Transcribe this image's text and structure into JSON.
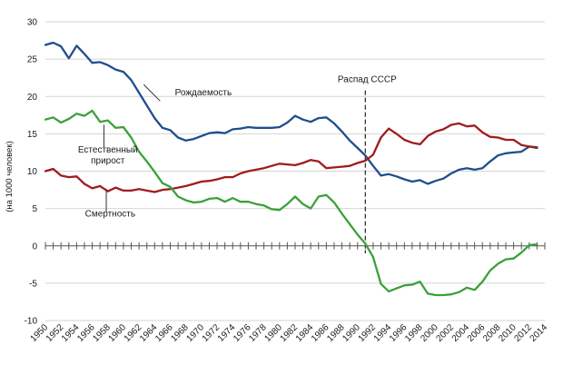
{
  "chart_data": {
    "type": "line",
    "title": "",
    "xlabel": "",
    "ylabel": "(на 1000 человек)",
    "xlim": [
      1950,
      2014
    ],
    "ylim": [
      -10,
      30
    ],
    "grid": true,
    "x_ticks": [
      "1950",
      "1952",
      "1954",
      "1956",
      "1958",
      "1960",
      "1962",
      "1964",
      "1966",
      "1968",
      "1970",
      "1972",
      "1974",
      "1976",
      "1978",
      "1980",
      "1982",
      "1984",
      "1986",
      "1988",
      "1990",
      "1992",
      "1994",
      "1996",
      "1998",
      "2000",
      "2002",
      "2004",
      "2006",
      "2008",
      "2010",
      "2012",
      "2014"
    ],
    "y_ticks": [
      "30",
      "25",
      "20",
      "15",
      "10",
      "5",
      "0",
      "-5",
      "-10"
    ],
    "event": {
      "year": 1991,
      "label": "Распад СССР"
    },
    "series": [
      {
        "name": "Рождаемость",
        "color": "#1f4e8c",
        "points": [
          [
            1950,
            26.9
          ],
          [
            1951,
            27.2
          ],
          [
            1952,
            26.7
          ],
          [
            1953,
            25.1
          ],
          [
            1954,
            26.8
          ],
          [
            1955,
            25.7
          ],
          [
            1956,
            24.5
          ],
          [
            1957,
            24.6
          ],
          [
            1958,
            24.2
          ],
          [
            1959,
            23.6
          ],
          [
            1960,
            23.3
          ],
          [
            1961,
            22.2
          ],
          [
            1962,
            20.5
          ],
          [
            1963,
            18.8
          ],
          [
            1964,
            17.1
          ],
          [
            1965,
            15.8
          ],
          [
            1966,
            15.5
          ],
          [
            1967,
            14.5
          ],
          [
            1968,
            14.1
          ],
          [
            1969,
            14.3
          ],
          [
            1970,
            14.7
          ],
          [
            1971,
            15.1
          ],
          [
            1972,
            15.2
          ],
          [
            1973,
            15.1
          ],
          [
            1974,
            15.6
          ],
          [
            1975,
            15.7
          ],
          [
            1976,
            15.9
          ],
          [
            1977,
            15.8
          ],
          [
            1978,
            15.8
          ],
          [
            1979,
            15.8
          ],
          [
            1980,
            15.9
          ],
          [
            1981,
            16.5
          ],
          [
            1982,
            17.4
          ],
          [
            1983,
            16.9
          ],
          [
            1984,
            16.6
          ],
          [
            1985,
            17.1
          ],
          [
            1986,
            17.2
          ],
          [
            1987,
            16.4
          ],
          [
            1988,
            15.3
          ],
          [
            1989,
            14.1
          ],
          [
            1990,
            13.1
          ],
          [
            1991,
            12.1
          ],
          [
            1992,
            10.7
          ],
          [
            1993,
            9.4
          ],
          [
            1994,
            9.6
          ],
          [
            1995,
            9.3
          ],
          [
            1996,
            8.9
          ],
          [
            1997,
            8.6
          ],
          [
            1998,
            8.8
          ],
          [
            1999,
            8.3
          ],
          [
            2000,
            8.7
          ],
          [
            2001,
            9.0
          ],
          [
            2002,
            9.7
          ],
          [
            2003,
            10.2
          ],
          [
            2004,
            10.4
          ],
          [
            2005,
            10.2
          ],
          [
            2006,
            10.4
          ],
          [
            2007,
            11.3
          ],
          [
            2008,
            12.1
          ],
          [
            2009,
            12.4
          ],
          [
            2010,
            12.5
          ],
          [
            2011,
            12.6
          ],
          [
            2012,
            13.3
          ],
          [
            2013,
            13.2
          ]
        ]
      },
      {
        "name": "Смертность",
        "color": "#a01c1c",
        "points": [
          [
            1950,
            10.0
          ],
          [
            1951,
            10.3
          ],
          [
            1952,
            9.4
          ],
          [
            1953,
            9.2
          ],
          [
            1954,
            9.3
          ],
          [
            1955,
            8.3
          ],
          [
            1956,
            7.7
          ],
          [
            1957,
            8.0
          ],
          [
            1958,
            7.3
          ],
          [
            1959,
            7.8
          ],
          [
            1960,
            7.4
          ],
          [
            1961,
            7.4
          ],
          [
            1962,
            7.6
          ],
          [
            1963,
            7.4
          ],
          [
            1964,
            7.2
          ],
          [
            1965,
            7.5
          ],
          [
            1966,
            7.6
          ],
          [
            1967,
            7.8
          ],
          [
            1968,
            8.0
          ],
          [
            1969,
            8.3
          ],
          [
            1970,
            8.6
          ],
          [
            1971,
            8.7
          ],
          [
            1972,
            8.9
          ],
          [
            1973,
            9.2
          ],
          [
            1974,
            9.2
          ],
          [
            1975,
            9.7
          ],
          [
            1976,
            10.0
          ],
          [
            1977,
            10.2
          ],
          [
            1978,
            10.4
          ],
          [
            1979,
            10.7
          ],
          [
            1980,
            11.0
          ],
          [
            1981,
            10.9
          ],
          [
            1982,
            10.8
          ],
          [
            1983,
            11.1
          ],
          [
            1984,
            11.5
          ],
          [
            1985,
            11.3
          ],
          [
            1986,
            10.4
          ],
          [
            1987,
            10.5
          ],
          [
            1988,
            10.6
          ],
          [
            1989,
            10.7
          ],
          [
            1990,
            11.1
          ],
          [
            1991,
            11.4
          ],
          [
            1992,
            12.2
          ],
          [
            1993,
            14.5
          ],
          [
            1994,
            15.7
          ],
          [
            1995,
            15.0
          ],
          [
            1996,
            14.2
          ],
          [
            1997,
            13.8
          ],
          [
            1998,
            13.6
          ],
          [
            1999,
            14.7
          ],
          [
            2000,
            15.3
          ],
          [
            2001,
            15.6
          ],
          [
            2002,
            16.2
          ],
          [
            2003,
            16.4
          ],
          [
            2004,
            16.0
          ],
          [
            2005,
            16.1
          ],
          [
            2006,
            15.2
          ],
          [
            2007,
            14.6
          ],
          [
            2008,
            14.5
          ],
          [
            2009,
            14.2
          ],
          [
            2010,
            14.2
          ],
          [
            2011,
            13.5
          ],
          [
            2012,
            13.3
          ],
          [
            2013,
            13.1
          ]
        ]
      },
      {
        "name": "Естественный прирост",
        "color": "#3aa13a",
        "points": [
          [
            1950,
            16.9
          ],
          [
            1951,
            17.2
          ],
          [
            1952,
            16.5
          ],
          [
            1953,
            17.0
          ],
          [
            1954,
            17.7
          ],
          [
            1955,
            17.4
          ],
          [
            1956,
            18.1
          ],
          [
            1957,
            16.6
          ],
          [
            1958,
            16.8
          ],
          [
            1959,
            15.8
          ],
          [
            1960,
            15.9
          ],
          [
            1961,
            14.5
          ],
          [
            1962,
            12.6
          ],
          [
            1963,
            11.3
          ],
          [
            1964,
            9.9
          ],
          [
            1965,
            8.4
          ],
          [
            1966,
            7.9
          ],
          [
            1967,
            6.6
          ],
          [
            1968,
            6.1
          ],
          [
            1969,
            5.8
          ],
          [
            1970,
            5.9
          ],
          [
            1971,
            6.3
          ],
          [
            1972,
            6.4
          ],
          [
            1973,
            5.9
          ],
          [
            1974,
            6.4
          ],
          [
            1975,
            5.9
          ],
          [
            1976,
            5.9
          ],
          [
            1977,
            5.6
          ],
          [
            1978,
            5.4
          ],
          [
            1979,
            4.9
          ],
          [
            1980,
            4.8
          ],
          [
            1981,
            5.6
          ],
          [
            1982,
            6.6
          ],
          [
            1983,
            5.6
          ],
          [
            1984,
            5.0
          ],
          [
            1985,
            6.6
          ],
          [
            1986,
            6.8
          ],
          [
            1987,
            5.8
          ],
          [
            1988,
            4.3
          ],
          [
            1989,
            2.9
          ],
          [
            1990,
            1.5
          ],
          [
            1991,
            0.3
          ],
          [
            1992,
            -1.5
          ],
          [
            1993,
            -5.1
          ],
          [
            1994,
            -6.1
          ],
          [
            1995,
            -5.7
          ],
          [
            1996,
            -5.3
          ],
          [
            1997,
            -5.2
          ],
          [
            1998,
            -4.8
          ],
          [
            1999,
            -6.4
          ],
          [
            2000,
            -6.6
          ],
          [
            2001,
            -6.6
          ],
          [
            2002,
            -6.5
          ],
          [
            2003,
            -6.2
          ],
          [
            2004,
            -5.6
          ],
          [
            2005,
            -5.9
          ],
          [
            2006,
            -4.8
          ],
          [
            2007,
            -3.3
          ],
          [
            2008,
            -2.4
          ],
          [
            2009,
            -1.8
          ],
          [
            2010,
            -1.7
          ],
          [
            2011,
            -0.9
          ],
          [
            2012,
            0.1
          ],
          [
            2013,
            0.2
          ]
        ]
      }
    ]
  }
}
